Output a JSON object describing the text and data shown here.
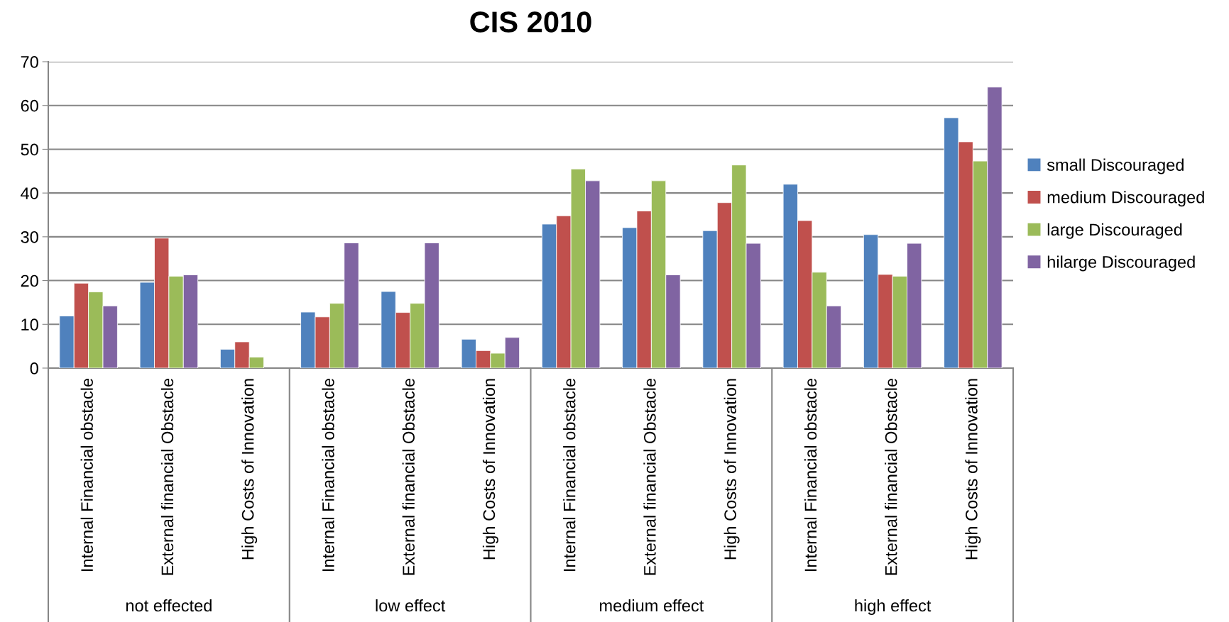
{
  "chart_data": {
    "type": "bar",
    "title": "CIS 2010",
    "categories": [
      "Internal Financial obstacle",
      "External financial Obstacle",
      "High Costs of Innovation",
      "Internal Financial obstacle",
      "External financial Obstacle",
      "High Costs of Innovation",
      "Internal Financial obstacle",
      "External financial Obstacle",
      "High Costs of Innovation",
      "Internal Financial obstacle",
      "External financial Obstacle",
      "High Costs of Innovation"
    ],
    "series": [
      {
        "name": "small Discouraged",
        "color": "#4f81bd",
        "values": [
          11.9,
          19.6,
          4.3,
          12.8,
          17.5,
          6.6,
          32.9,
          32.1,
          31.4,
          42.0,
          30.5,
          57.2
        ]
      },
      {
        "name": "medium Discouraged",
        "color": "#c0504d",
        "values": [
          19.4,
          29.7,
          6.0,
          11.7,
          12.7,
          4.0,
          34.8,
          35.9,
          37.8,
          33.7,
          21.4,
          51.7
        ]
      },
      {
        "name": "large Discouraged",
        "color": "#9bbb59",
        "values": [
          17.4,
          21.0,
          2.5,
          14.8,
          14.8,
          3.4,
          45.5,
          42.8,
          46.4,
          21.9,
          21.0,
          47.3
        ]
      },
      {
        "name": "hilarge Discouraged",
        "color": "#8064a2",
        "values": [
          14.2,
          21.3,
          null,
          28.6,
          28.6,
          7.0,
          42.8,
          21.3,
          28.5,
          14.2,
          28.5,
          64.2
        ]
      }
    ],
    "annotations": [
      "not effected",
      "low effect",
      "medium effect",
      "high effect"
    ],
    "ylim": [
      0,
      70
    ],
    "yticks": [
      0,
      10,
      20,
      30,
      40,
      50,
      60,
      70
    ],
    "grid": "y",
    "legend": "right"
  }
}
